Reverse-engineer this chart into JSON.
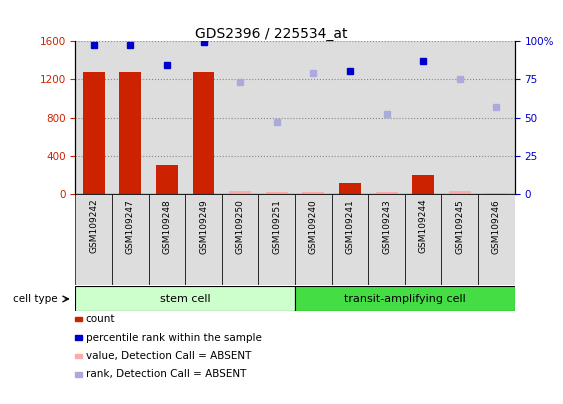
{
  "title": "GDS2396 / 225534_at",
  "samples": [
    "GSM109242",
    "GSM109247",
    "GSM109248",
    "GSM109249",
    "GSM109250",
    "GSM109251",
    "GSM109240",
    "GSM109241",
    "GSM109243",
    "GSM109244",
    "GSM109245",
    "GSM109246"
  ],
  "count_values": [
    1270,
    1270,
    310,
    1270,
    null,
    null,
    null,
    120,
    null,
    200,
    null,
    null
  ],
  "count_absent": [
    null,
    null,
    null,
    null,
    30,
    25,
    20,
    null,
    20,
    null,
    30,
    15
  ],
  "percentile_rank": [
    97,
    97,
    84,
    99,
    null,
    null,
    null,
    80,
    null,
    87,
    null,
    null
  ],
  "rank_absent": [
    null,
    null,
    null,
    null,
    73,
    47,
    79,
    null,
    52,
    null,
    75,
    57
  ],
  "ylim_left": [
    0,
    1600
  ],
  "ylim_right": [
    0,
    100
  ],
  "yticks_left": [
    0,
    400,
    800,
    1200,
    1600
  ],
  "yticks_right": [
    0,
    25,
    50,
    75,
    100
  ],
  "bar_color_present": "#cc2200",
  "bar_color_absent": "#ffaaaa",
  "dot_color_present": "#0000cc",
  "dot_color_absent": "#aaaadd",
  "stem_cell_color": "#ccffcc",
  "transit_cell_color": "#44dd44",
  "col_bg_color": "#dddddd",
  "grid_color": "#888888",
  "legend_items": [
    "count",
    "percentile rank within the sample",
    "value, Detection Call = ABSENT",
    "rank, Detection Call = ABSENT"
  ],
  "legend_colors": [
    "#cc2200",
    "#0000cc",
    "#ffaaaa",
    "#aaaadd"
  ],
  "n_stem": 6,
  "n_transit": 6
}
